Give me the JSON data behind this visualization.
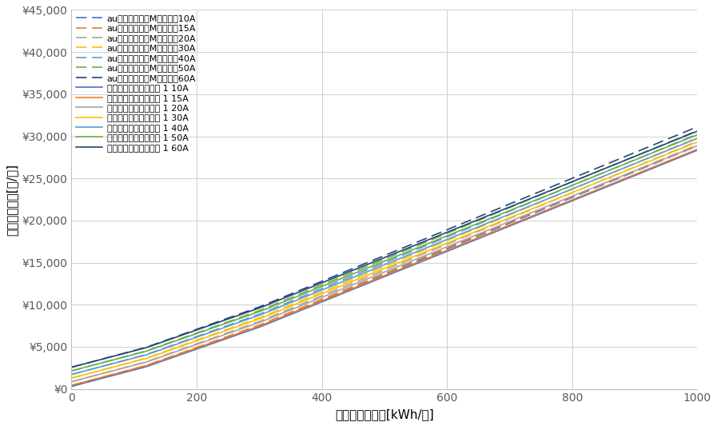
{
  "xlabel": "月間電力使用量[kWh/月]",
  "ylabel": "推定電気料金[円/月]",
  "xlim": [
    0,
    1000
  ],
  "ylim": [
    0,
    45000
  ],
  "xticks": [
    0,
    200,
    400,
    600,
    800,
    1000
  ],
  "yticks": [
    0,
    5000,
    10000,
    15000,
    20000,
    25000,
    30000,
    35000,
    40000,
    45000
  ],
  "au_plans": [
    {
      "label": "auでんきでんきMプラン　10A",
      "base_fee": 311,
      "color": "#4472C4"
    },
    {
      "label": "auでんきでんきMプラン　15A",
      "base_fee": 429,
      "color": "#ED7D31"
    },
    {
      "label": "auでんきでんきMプラン　20A",
      "base_fee": 858,
      "color": "#A5A5A5"
    },
    {
      "label": "auでんきでんきMプラン　30A",
      "base_fee": 1287,
      "color": "#FFC000"
    },
    {
      "label": "auでんきでんきMプラン　40A",
      "base_fee": 1716,
      "color": "#5B9BD5"
    },
    {
      "label": "auでんきでんきMプラン　50A",
      "base_fee": 2145,
      "color": "#70AD47"
    },
    {
      "label": "auでんきでんきMプラン　60A",
      "base_fee": 2574,
      "color": "#264478"
    }
  ],
  "nichigasu_plans": [
    {
      "label": "ニチガスでガ割でんき 1 10A",
      "base_fee": 311,
      "color": "#4472C4"
    },
    {
      "label": "ニチガスでガ割でんき 1 15A",
      "base_fee": 429,
      "color": "#ED7D31"
    },
    {
      "label": "ニチガスでガ割でんき 1 20A",
      "base_fee": 858,
      "color": "#A5A5A5"
    },
    {
      "label": "ニチガスでガ割でんき 1 30A",
      "base_fee": 1287,
      "color": "#FFC000"
    },
    {
      "label": "ニチガスでガ割でんき 1 40A",
      "base_fee": 1716,
      "color": "#5B9BD5"
    },
    {
      "label": "ニチガスでガ割でんき 1 50A",
      "base_fee": 2145,
      "color": "#70AD47"
    },
    {
      "label": "ニチガスでガ割でんき 1 60A",
      "base_fee": 2574,
      "color": "#264478"
    }
  ],
  "au_tier1_rate": 19.88,
  "au_tier2_rate": 26.48,
  "au_tier3_rate": 30.57,
  "nichigasu_tier1_rate": 19.52,
  "nichigasu_tier2_rate": 26.0,
  "nichigasu_tier3_rate": 30.02,
  "tier1_limit": 120,
  "tier2_limit": 300,
  "background_color": "#FFFFFF",
  "grid_color": "#D0D0D0",
  "font_size_tick": 10,
  "font_size_label": 11,
  "font_size_legend": 8,
  "linewidth": 1.2
}
